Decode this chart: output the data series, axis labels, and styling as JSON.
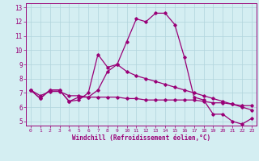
{
  "xlabel": "Windchill (Refroidissement éolien,°C)",
  "xlim": [
    -0.5,
    23.5
  ],
  "ylim": [
    4.7,
    13.3
  ],
  "yticks": [
    5,
    6,
    7,
    8,
    9,
    10,
    11,
    12,
    13
  ],
  "xticks": [
    0,
    1,
    2,
    3,
    4,
    5,
    6,
    7,
    8,
    9,
    10,
    11,
    12,
    13,
    14,
    15,
    16,
    17,
    18,
    19,
    20,
    21,
    22,
    23
  ],
  "background_color": "#d4eef2",
  "grid_color": "#b0d4dc",
  "line_color": "#990077",
  "series1": {
    "x": [
      0,
      1,
      2,
      3,
      4,
      5,
      6,
      7,
      8,
      9,
      10,
      11,
      12,
      13,
      14,
      15,
      16,
      17,
      18,
      19,
      20,
      21,
      22,
      23
    ],
    "y": [
      7.2,
      6.6,
      7.2,
      7.2,
      6.4,
      6.7,
      6.7,
      7.2,
      8.5,
      9.0,
      10.6,
      12.2,
      12.0,
      12.6,
      12.6,
      11.8,
      9.5,
      6.7,
      6.5,
      5.5,
      5.5,
      5.0,
      4.8,
      5.2
    ]
  },
  "series2": {
    "x": [
      0,
      1,
      2,
      3,
      4,
      5,
      6,
      7,
      8,
      9,
      10,
      11,
      12,
      13,
      14,
      15,
      16,
      17,
      18,
      19,
      20,
      21,
      22,
      23
    ],
    "y": [
      7.2,
      6.8,
      7.1,
      7.1,
      6.8,
      6.8,
      6.7,
      6.7,
      6.7,
      6.7,
      6.6,
      6.6,
      6.5,
      6.5,
      6.5,
      6.5,
      6.5,
      6.5,
      6.4,
      6.3,
      6.3,
      6.2,
      6.1,
      6.1
    ]
  },
  "series3": {
    "x": [
      0,
      1,
      2,
      3,
      4,
      5,
      6,
      7,
      8,
      9,
      10,
      11,
      12,
      13,
      14,
      15,
      16,
      17,
      18,
      19,
      20,
      21,
      22,
      23
    ],
    "y": [
      7.2,
      6.6,
      7.2,
      7.2,
      6.4,
      6.5,
      7.0,
      9.7,
      8.8,
      9.0,
      8.5,
      8.2,
      8.0,
      7.8,
      7.6,
      7.4,
      7.2,
      7.0,
      6.8,
      6.6,
      6.4,
      6.2,
      6.0,
      5.8
    ]
  }
}
